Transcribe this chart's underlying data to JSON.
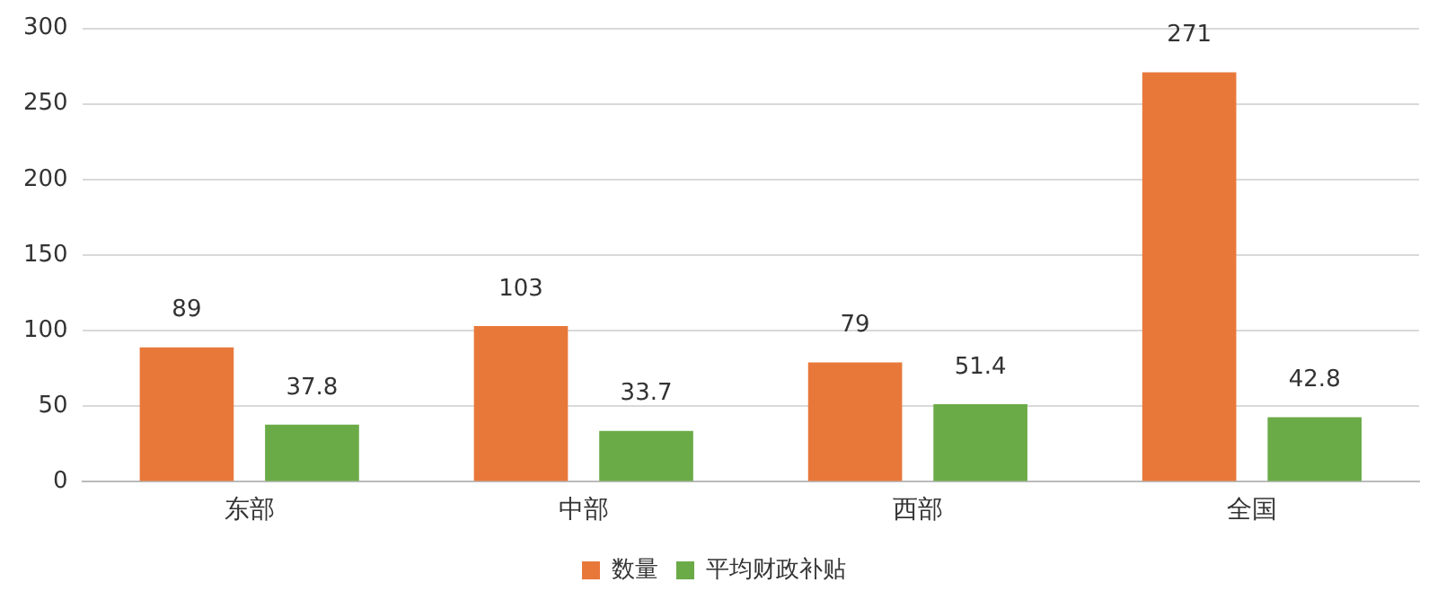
{
  "chart_data": {
    "type": "bar",
    "categories": [
      "东部",
      "中部",
      "西部",
      "全国"
    ],
    "series": [
      {
        "name": "数量",
        "color": "#e8783a",
        "values": [
          89,
          103,
          79,
          271
        ]
      },
      {
        "name": "平均财政补贴",
        "color": "#6aab47",
        "values": [
          37.8,
          33.7,
          51.4,
          42.8
        ]
      }
    ],
    "ylim": [
      0,
      300
    ],
    "yticks": [
      0,
      50,
      100,
      150,
      200,
      250,
      300
    ],
    "grid": "y",
    "legend": "bottom",
    "data_labels": true
  }
}
